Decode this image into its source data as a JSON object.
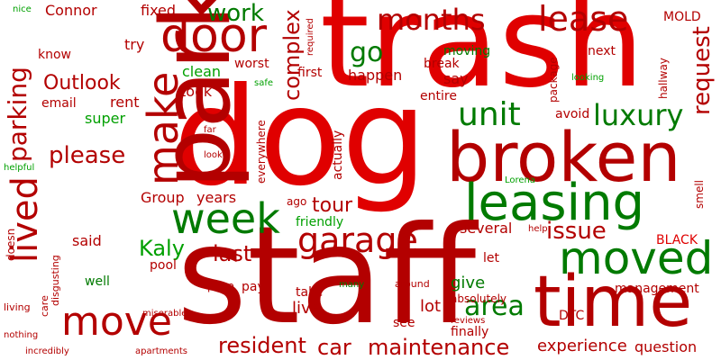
{
  "colors": {
    "background": "#ffffff",
    "dark_red": "#b30000",
    "red": "#e00000",
    "green": "#00a000",
    "dark_green": "#007a00"
  },
  "words": [
    {
      "text": "dog",
      "color": "#e00000"
    },
    {
      "text": "trash",
      "color": "#e00000"
    },
    {
      "text": "staff",
      "color": "#b30000"
    },
    {
      "text": "park",
      "color": "#b30000"
    },
    {
      "text": "broken",
      "color": "#b30000"
    },
    {
      "text": "time",
      "color": "#b30000"
    },
    {
      "text": "leasing",
      "color": "#007a00"
    },
    {
      "text": "make",
      "color": "#b30000"
    },
    {
      "text": "door",
      "color": "#b30000"
    },
    {
      "text": "week",
      "color": "#007a00"
    },
    {
      "text": "moved",
      "color": "#007a00"
    },
    {
      "text": "months",
      "color": "#b30000"
    },
    {
      "text": "lease",
      "color": "#b30000"
    },
    {
      "text": "unit",
      "color": "#007a00"
    },
    {
      "text": "luxury",
      "color": "#007a00"
    },
    {
      "text": "lived",
      "color": "#b30000"
    },
    {
      "text": "move",
      "color": "#b30000"
    },
    {
      "text": "garage",
      "color": "#b30000"
    },
    {
      "text": "parking",
      "color": "#b30000"
    },
    {
      "text": "request",
      "color": "#b30000"
    },
    {
      "text": "complex",
      "color": "#b30000"
    },
    {
      "text": "work",
      "color": "#007a00"
    },
    {
      "text": "Outlook",
      "color": "#b30000"
    },
    {
      "text": "please",
      "color": "#b30000"
    },
    {
      "text": "area",
      "color": "#007a00"
    },
    {
      "text": "issue",
      "color": "#b30000"
    },
    {
      "text": "resident",
      "color": "#b30000"
    },
    {
      "text": "maintenance",
      "color": "#b30000"
    },
    {
      "text": "go",
      "color": "#007a00"
    },
    {
      "text": "tour",
      "color": "#b30000"
    },
    {
      "text": "last",
      "color": "#b30000"
    },
    {
      "text": "Kaly",
      "color": "#00a000"
    },
    {
      "text": "Group",
      "color": "#b30000"
    },
    {
      "text": "years",
      "color": "#b30000"
    },
    {
      "text": "car",
      "color": "#b30000"
    },
    {
      "text": "live",
      "color": "#b30000"
    },
    {
      "text": "lot",
      "color": "#b30000"
    },
    {
      "text": "give",
      "color": "#007a00"
    },
    {
      "text": "experience",
      "color": "#b30000"
    },
    {
      "text": "question",
      "color": "#b30000"
    },
    {
      "text": "Connor",
      "color": "#b30000"
    },
    {
      "text": "fixed",
      "color": "#b30000"
    },
    {
      "text": "try",
      "color": "#b30000"
    },
    {
      "text": "know",
      "color": "#b30000"
    },
    {
      "text": "clean",
      "color": "#00a000"
    },
    {
      "text": "took",
      "color": "#b30000"
    },
    {
      "text": "worst",
      "color": "#b30000"
    },
    {
      "text": "rent",
      "color": "#b30000"
    },
    {
      "text": "super",
      "color": "#00a000"
    },
    {
      "text": "email",
      "color": "#b30000"
    },
    {
      "text": "moving",
      "color": "#007a00"
    },
    {
      "text": "break",
      "color": "#b30000"
    },
    {
      "text": "happen",
      "color": "#b30000"
    },
    {
      "text": "first",
      "color": "#b30000"
    },
    {
      "text": "say",
      "color": "#b30000"
    },
    {
      "text": "entire",
      "color": "#b30000"
    },
    {
      "text": "next",
      "color": "#b30000"
    },
    {
      "text": "avoid",
      "color": "#b30000"
    },
    {
      "text": "package",
      "color": "#b30000"
    },
    {
      "text": "hallway",
      "color": "#b30000"
    },
    {
      "text": "smell",
      "color": "#b30000"
    },
    {
      "text": "MOLD",
      "color": "#b30000"
    },
    {
      "text": "BLACK",
      "color": "#e00000"
    },
    {
      "text": "management",
      "color": "#b30000"
    },
    {
      "text": "DTC",
      "color": "#b30000"
    },
    {
      "text": "finally",
      "color": "#b30000"
    },
    {
      "text": "see",
      "color": "#b30000"
    },
    {
      "text": "said",
      "color": "#b30000"
    },
    {
      "text": "pool",
      "color": "#b30000"
    },
    {
      "text": "well",
      "color": "#007a00"
    },
    {
      "text": "pay",
      "color": "#b30000"
    },
    {
      "text": "poop",
      "color": "#b30000"
    },
    {
      "text": "take",
      "color": "#b30000"
    },
    {
      "text": "several",
      "color": "#b30000"
    },
    {
      "text": "let",
      "color": "#b30000"
    },
    {
      "text": "friendly",
      "color": "#00a000"
    },
    {
      "text": "ago",
      "color": "#b30000"
    },
    {
      "text": "actually",
      "color": "#b30000"
    },
    {
      "text": "everywhere",
      "color": "#b30000"
    },
    {
      "text": "absolutely",
      "color": "#b30000"
    },
    {
      "text": "reviews",
      "color": "#b30000"
    },
    {
      "text": "around",
      "color": "#b30000"
    },
    {
      "text": "many",
      "color": "#007a00"
    },
    {
      "text": "help",
      "color": "#b30000"
    },
    {
      "text": "Lorena",
      "color": "#00a000"
    },
    {
      "text": "looking",
      "color": "#00a000"
    },
    {
      "text": "required",
      "color": "#b30000"
    },
    {
      "text": "safe",
      "color": "#00a000"
    },
    {
      "text": "far",
      "color": "#b30000"
    },
    {
      "text": "look",
      "color": "#b30000"
    },
    {
      "text": "nice",
      "color": "#00a000"
    },
    {
      "text": "helpful",
      "color": "#00a000"
    },
    {
      "text": "doesn",
      "color": "#b30000"
    },
    {
      "text": "care",
      "color": "#b30000"
    },
    {
      "text": "disgusting",
      "color": "#b30000"
    },
    {
      "text": "living",
      "color": "#b30000"
    },
    {
      "text": "nothing",
      "color": "#b30000"
    },
    {
      "text": "miserable",
      "color": "#b30000"
    },
    {
      "text": "incredibly",
      "color": "#b30000"
    },
    {
      "text": "apartments",
      "color": "#b30000"
    }
  ]
}
